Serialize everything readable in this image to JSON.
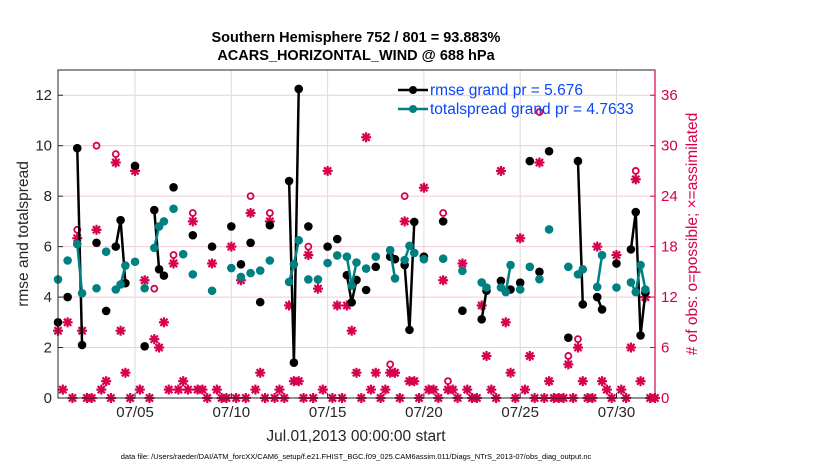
{
  "chart_data": {
    "type": "line",
    "title": [
      "Southern Hemisphere 752 / 801 = 93.883%",
      "ACARS_HORIZONTAL_WIND @ 688 hPa"
    ],
    "xlabel": "Jul.01,2013 00:00:00 start",
    "ylabel": "rmse and totalspread",
    "ylabel_right": "# of obs: o=possible; ×=assimilated",
    "footnote": "data file: /Users/raeder/DAI/ATM_forcXX/CAM6_setup/f.e21.FHIST_BGC.f09_025.CAM6assim.011/Diags_NTrS_2013-07/obs_diag_output.nc",
    "x_units": "days since start",
    "xlim": [
      0,
      31
    ],
    "xticks": [
      4,
      9,
      14,
      19,
      24,
      29
    ],
    "xtick_labels": [
      "07/05",
      "07/10",
      "07/15",
      "07/20",
      "07/25",
      "07/30"
    ],
    "ylim": [
      0,
      13
    ],
    "yticks": [
      0,
      2,
      4,
      6,
      8,
      10,
      12
    ],
    "ylim_right": [
      0,
      39
    ],
    "yticks_right": [
      0,
      6,
      12,
      18,
      24,
      30,
      36
    ],
    "grid": true,
    "legend_position": "top-right",
    "colors": {
      "rmse": "#000000",
      "totalspread": "#008080",
      "obs": "#d6004f",
      "legend_text": "#0a46f5"
    },
    "series": [
      {
        "name": "rmse grand pr = 5.676",
        "key": "rmse",
        "points": [
          [
            0,
            3.0
          ],
          [
            0.5,
            4.0
          ],
          [
            1,
            9.9
          ],
          [
            1.25,
            2.1
          ],
          [
            2,
            6.15
          ],
          [
            2.5,
            3.45
          ],
          [
            3,
            6.0
          ],
          [
            3.25,
            7.05
          ],
          [
            3.5,
            4.55
          ],
          [
            4,
            9.2
          ],
          [
            4.5,
            2.05
          ],
          [
            5,
            7.45
          ],
          [
            5.25,
            5.1
          ],
          [
            5.5,
            4.85
          ],
          [
            6,
            8.35
          ],
          [
            7,
            6.45
          ],
          [
            8,
            6.0
          ],
          [
            9,
            6.8
          ],
          [
            9.5,
            5.3
          ],
          [
            10,
            6.15
          ],
          [
            10.5,
            3.8
          ],
          [
            11,
            6.85
          ],
          [
            12,
            8.6
          ],
          [
            12.25,
            1.4
          ],
          [
            12.5,
            12.25
          ],
          [
            13,
            6.8
          ],
          [
            14,
            6.0
          ],
          [
            14.5,
            6.3
          ],
          [
            15,
            4.87
          ],
          [
            15.25,
            3.79
          ],
          [
            15.5,
            4.68
          ],
          [
            16,
            4.28
          ],
          [
            16.5,
            5.2
          ],
          [
            17.25,
            5.6
          ],
          [
            17.5,
            5.5
          ],
          [
            18,
            5.27
          ],
          [
            18.25,
            2.7
          ],
          [
            18.5,
            6.98
          ],
          [
            19,
            5.6
          ],
          [
            20,
            7.0
          ],
          [
            21,
            3.46
          ],
          [
            22,
            3.12
          ],
          [
            22.25,
            4.25
          ],
          [
            23,
            4.64
          ],
          [
            23.5,
            4.3
          ],
          [
            24,
            4.57
          ],
          [
            24.5,
            9.39
          ],
          [
            25,
            5.0
          ],
          [
            25.5,
            9.78
          ],
          [
            26.5,
            2.39
          ],
          [
            27,
            9.39
          ],
          [
            27.25,
            3.71
          ],
          [
            28,
            4.0
          ],
          [
            28.25,
            3.51
          ],
          [
            29,
            5.33
          ],
          [
            29.75,
            5.89
          ],
          [
            30,
            7.37
          ],
          [
            30.25,
            2.48
          ],
          [
            30.5,
            4.18
          ]
        ]
      },
      {
        "name": "totalspread grand pr = 4.7633",
        "key": "totalspread",
        "points": [
          [
            0,
            4.7
          ],
          [
            0.5,
            5.45
          ],
          [
            1,
            6.1
          ],
          [
            1.25,
            4.15
          ],
          [
            2,
            4.35
          ],
          [
            2.5,
            5.8
          ],
          [
            3,
            4.3
          ],
          [
            3.25,
            4.5
          ],
          [
            3.5,
            5.25
          ],
          [
            4,
            5.4
          ],
          [
            4.5,
            4.35
          ],
          [
            5,
            5.95
          ],
          [
            5.25,
            6.8
          ],
          [
            5.5,
            7.0
          ],
          [
            6,
            7.5
          ],
          [
            6.5,
            5.7
          ],
          [
            7,
            4.9
          ],
          [
            8,
            4.25
          ],
          [
            9,
            5.15
          ],
          [
            9.5,
            4.8
          ],
          [
            10,
            4.95
          ],
          [
            10.5,
            5.05
          ],
          [
            11,
            5.45
          ],
          [
            12,
            4.6
          ],
          [
            12.25,
            5.3
          ],
          [
            12.5,
            6.25
          ],
          [
            13,
            4.7
          ],
          [
            13.5,
            4.7
          ],
          [
            14,
            5.35
          ],
          [
            14.5,
            5.65
          ],
          [
            15,
            5.6
          ],
          [
            15.25,
            4.45
          ],
          [
            15.5,
            5.37
          ],
          [
            16,
            5.13
          ],
          [
            16.5,
            5.6
          ],
          [
            17.25,
            5.86
          ],
          [
            17.5,
            4.74
          ],
          [
            18,
            5.47
          ],
          [
            18.25,
            6.03
          ],
          [
            18.5,
            5.75
          ],
          [
            19,
            5.5
          ],
          [
            20,
            5.52
          ],
          [
            21,
            5.04
          ],
          [
            22,
            4.58
          ],
          [
            22.25,
            4.38
          ],
          [
            23,
            4.38
          ],
          [
            23.25,
            4.2
          ],
          [
            23.5,
            5.27
          ],
          [
            24,
            4.3
          ],
          [
            24.5,
            5.2
          ],
          [
            25,
            4.71
          ],
          [
            25.5,
            6.68
          ],
          [
            26.5,
            5.2
          ],
          [
            27,
            4.9
          ],
          [
            27.25,
            5.1
          ],
          [
            28,
            4.4
          ],
          [
            28.25,
            5.66
          ],
          [
            29,
            4.38
          ],
          [
            29.75,
            4.58
          ],
          [
            30,
            4.2
          ],
          [
            30.25,
            5.27
          ],
          [
            30.5,
            4.3
          ]
        ]
      }
    ],
    "obs_assimilated": [
      [
        0,
        8
      ],
      [
        0.25,
        1
      ],
      [
        0.5,
        9
      ],
      [
        0.75,
        0
      ],
      [
        1,
        19
      ],
      [
        1.25,
        8
      ],
      [
        1.5,
        0
      ],
      [
        1.75,
        0
      ],
      [
        2,
        20
      ],
      [
        2.25,
        1
      ],
      [
        2.5,
        2
      ],
      [
        2.75,
        0
      ],
      [
        3,
        28
      ],
      [
        3.25,
        8
      ],
      [
        3.5,
        3
      ],
      [
        3.75,
        0
      ],
      [
        4,
        27
      ],
      [
        4.25,
        1
      ],
      [
        4.5,
        14
      ],
      [
        4.75,
        0
      ],
      [
        5,
        7
      ],
      [
        5.25,
        6
      ],
      [
        5.5,
        9
      ],
      [
        5.75,
        1
      ],
      [
        6,
        16
      ],
      [
        6.25,
        1
      ],
      [
        6.5,
        2
      ],
      [
        6.75,
        1
      ],
      [
        7,
        21
      ],
      [
        7.25,
        1
      ],
      [
        7.5,
        1
      ],
      [
        7.75,
        0
      ],
      [
        8,
        16
      ],
      [
        8.25,
        1
      ],
      [
        8.5,
        0
      ],
      [
        8.75,
        0
      ],
      [
        9,
        18
      ],
      [
        9.25,
        0
      ],
      [
        9.5,
        14
      ],
      [
        9.75,
        0
      ],
      [
        10,
        22
      ],
      [
        10.25,
        1
      ],
      [
        10.5,
        3
      ],
      [
        10.75,
        0
      ],
      [
        11,
        21
      ],
      [
        11.25,
        0
      ],
      [
        11.5,
        1
      ],
      [
        11.75,
        0
      ],
      [
        12,
        11
      ],
      [
        12.25,
        2
      ],
      [
        12.5,
        2
      ],
      [
        12.75,
        0
      ],
      [
        13,
        17
      ],
      [
        13.25,
        0
      ],
      [
        13.5,
        13
      ],
      [
        13.75,
        1
      ],
      [
        14,
        27
      ],
      [
        14.25,
        0
      ],
      [
        14.5,
        11
      ],
      [
        14.75,
        0
      ],
      [
        15,
        11
      ],
      [
        15.25,
        8
      ],
      [
        15.5,
        3
      ],
      [
        15.75,
        0
      ],
      [
        16,
        31
      ],
      [
        16.25,
        1
      ],
      [
        16.5,
        3
      ],
      [
        16.75,
        0
      ],
      [
        17,
        1
      ],
      [
        17.25,
        3
      ],
      [
        17.5,
        3
      ],
      [
        17.75,
        0
      ],
      [
        18,
        21
      ],
      [
        18.25,
        2
      ],
      [
        18.5,
        2
      ],
      [
        18.75,
        0
      ],
      [
        19,
        25
      ],
      [
        19.25,
        1
      ],
      [
        19.5,
        1
      ],
      [
        19.75,
        0
      ],
      [
        20,
        14
      ],
      [
        20.25,
        1
      ],
      [
        20.5,
        1
      ],
      [
        20.75,
        0
      ],
      [
        21,
        16
      ],
      [
        21.25,
        1
      ],
      [
        21.5,
        0
      ],
      [
        21.75,
        0
      ],
      [
        22,
        11
      ],
      [
        22.25,
        5
      ],
      [
        22.5,
        1
      ],
      [
        22.75,
        0
      ],
      [
        23,
        27
      ],
      [
        23.25,
        9
      ],
      [
        23.5,
        3
      ],
      [
        23.75,
        0
      ],
      [
        24,
        19
      ],
      [
        24.25,
        1
      ],
      [
        24.5,
        5
      ],
      [
        24.75,
        0
      ],
      [
        25,
        28
      ],
      [
        25.25,
        0
      ],
      [
        25.5,
        2
      ],
      [
        25.75,
        0
      ],
      [
        26,
        0
      ],
      [
        26.25,
        0
      ],
      [
        26.5,
        4
      ],
      [
        26.75,
        0
      ],
      [
        27,
        6
      ],
      [
        27.25,
        2
      ],
      [
        27.5,
        0
      ],
      [
        27.75,
        0
      ],
      [
        28,
        18
      ],
      [
        28.25,
        2
      ],
      [
        28.5,
        1
      ],
      [
        28.75,
        0
      ],
      [
        29,
        17
      ],
      [
        29.25,
        1
      ],
      [
        29.5,
        0
      ],
      [
        29.75,
        6
      ],
      [
        30,
        26
      ],
      [
        30.25,
        2
      ],
      [
        30.5,
        12
      ],
      [
        30.75,
        0
      ],
      [
        31,
        0
      ]
    ],
    "obs_possible": [
      [
        1,
        20
      ],
      [
        2,
        30
      ],
      [
        3,
        29
      ],
      [
        5,
        13
      ],
      [
        6,
        17
      ],
      [
        7,
        22
      ],
      [
        8,
        18
      ],
      [
        10,
        24
      ],
      [
        11,
        22
      ],
      [
        13,
        18
      ],
      [
        17.25,
        4
      ],
      [
        18,
        24
      ],
      [
        20,
        22
      ],
      [
        20.25,
        2
      ],
      [
        25,
        34
      ],
      [
        26.5,
        5
      ],
      [
        27,
        7
      ],
      [
        30,
        27
      ]
    ]
  }
}
